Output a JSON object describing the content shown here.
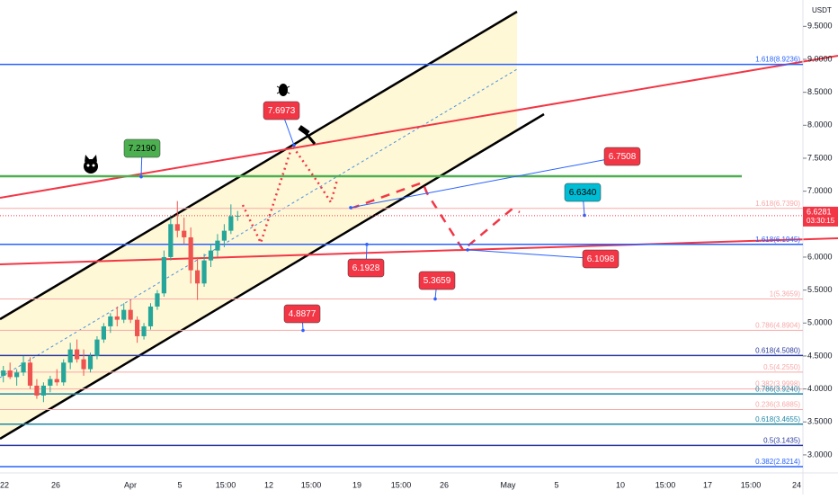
{
  "chart_data": {
    "type": "candlestick",
    "currency": "USDT",
    "ylim": [
      2.74,
      9.9
    ],
    "yticks": [
      {
        "value": 9.5,
        "label": "9.5000"
      },
      {
        "value": 9,
        "label": "9.0000"
      },
      {
        "value": 8.5,
        "label": "8.5000"
      },
      {
        "value": 8,
        "label": "8.0000"
      },
      {
        "value": 7.5,
        "label": "7.5000"
      },
      {
        "value": 7,
        "label": "7.0000"
      },
      {
        "value": 6.5,
        "label": "6.5000"
      },
      {
        "value": 6,
        "label": "6.0000"
      },
      {
        "value": 5.5,
        "label": "5.5000"
      },
      {
        "value": 5,
        "label": "5.0000"
      },
      {
        "value": 4.5,
        "label": "4.5000"
      },
      {
        "value": 4,
        "label": "4.0000"
      },
      {
        "value": 3.5,
        "label": "3.5000"
      },
      {
        "value": 3,
        "label": "3.0000"
      }
    ],
    "time_labels": [
      "22",
      "26",
      "Apr",
      "5",
      "15:00",
      "12",
      "15:00",
      "19",
      "15:00",
      "26",
      "May",
      "5",
      "10",
      "15:00",
      "17",
      "15:00",
      "24"
    ],
    "up_color": "#26a69a",
    "down_color": "#ef5350",
    "candles": [
      [
        4.2,
        4.35,
        4.1,
        4.28
      ],
      [
        4.28,
        4.4,
        4.15,
        4.18
      ],
      [
        4.18,
        4.3,
        4.05,
        4.25
      ],
      [
        4.25,
        4.5,
        4.2,
        4.4
      ],
      [
        4.4,
        4.48,
        4.0,
        4.05
      ],
      [
        4.05,
        4.15,
        3.85,
        3.9
      ],
      [
        3.9,
        4.1,
        3.8,
        4.05
      ],
      [
        4.05,
        4.2,
        3.95,
        4.15
      ],
      [
        4.15,
        4.3,
        4.05,
        4.1
      ],
      [
        4.1,
        4.45,
        4.05,
        4.4
      ],
      [
        4.4,
        4.7,
        4.3,
        4.6
      ],
      [
        4.6,
        4.75,
        4.4,
        4.45
      ],
      [
        4.45,
        4.6,
        4.2,
        4.3
      ],
      [
        4.3,
        4.55,
        4.25,
        4.5
      ],
      [
        4.5,
        4.8,
        4.45,
        4.75
      ],
      [
        4.75,
        5.0,
        4.7,
        4.95
      ],
      [
        4.95,
        5.15,
        4.85,
        5.1
      ],
      [
        5.1,
        5.25,
        4.95,
        5.05
      ],
      [
        5.05,
        5.3,
        5.0,
        5.2
      ],
      [
        5.2,
        5.35,
        5.0,
        5.05
      ],
      [
        5.05,
        5.1,
        4.7,
        4.8
      ],
      [
        4.8,
        5.0,
        4.75,
        4.95
      ],
      [
        4.95,
        5.3,
        4.9,
        5.25
      ],
      [
        5.25,
        5.5,
        5.2,
        5.45
      ],
      [
        5.45,
        6.1,
        5.4,
        6.0
      ],
      [
        6.0,
        6.6,
        5.95,
        6.5
      ],
      [
        6.5,
        6.85,
        6.3,
        6.4
      ],
      [
        6.4,
        6.6,
        6.2,
        6.3
      ],
      [
        6.3,
        6.45,
        5.6,
        5.8
      ],
      [
        5.8,
        6.0,
        5.35,
        5.6
      ],
      [
        5.6,
        6.05,
        5.55,
        5.95
      ],
      [
        5.95,
        6.2,
        5.85,
        6.1
      ],
      [
        6.1,
        6.35,
        6.0,
        6.25
      ],
      [
        6.25,
        6.5,
        6.15,
        6.4
      ],
      [
        6.4,
        6.8,
        6.35,
        6.62
      ],
      [
        6.62,
        6.7,
        6.55,
        6.628
      ]
    ],
    "fib_levels": [
      {
        "label": "1.618(8.9236)",
        "value": 8.9236,
        "color": "#2962ff"
      },
      {
        "label": "1.618(6.7390)",
        "value": 6.739,
        "color": "#f7a9a8"
      },
      {
        "label": "1.618(6.1945)",
        "value": 6.1945,
        "color": "#2962ff"
      },
      {
        "label": "1(5.3659)",
        "value": 5.3659,
        "color": "#f7a9a8"
      },
      {
        "label": "0.786(4.8904)",
        "value": 4.8904,
        "color": "#f7a9a8"
      },
      {
        "label": "0.618(4.5080)",
        "value": 4.508,
        "color": "#2a3a9f"
      },
      {
        "label": "0.5(4.2550)",
        "value": 4.255,
        "color": "#f7a9a8"
      },
      {
        "label": "0.382(3.9998)",
        "value": 3.9998,
        "color": "#f7a9a8"
      },
      {
        "label": "0.786(3.9240)",
        "value": 3.924,
        "color": "#1e88a8"
      },
      {
        "label": "0.236(3.6885)",
        "value": 3.6885,
        "color": "#f7a9a8"
      },
      {
        "label": "0.618(3.4655)",
        "value": 3.4655,
        "color": "#1e88a8"
      },
      {
        "label": "0.5(3.1435)",
        "value": 3.1435,
        "color": "#2a3a9f"
      },
      {
        "label": "0.382(2.8214)",
        "value": 2.8214,
        "color": "#2962ff"
      }
    ],
    "annotations": [
      {
        "label": "7.2190",
        "value": 7.219,
        "color": "#4caf50"
      },
      {
        "label": "7.6973",
        "value": 7.6973,
        "color": "#f23645"
      },
      {
        "label": "6.7508",
        "value": 6.7508,
        "color": "#f23645"
      },
      {
        "label": "6.6340",
        "value": 6.634,
        "color": "#00bcd4"
      },
      {
        "label": "6.1928",
        "value": 6.1928,
        "color": "#f23645"
      },
      {
        "label": "6.1098",
        "value": 6.1098,
        "color": "#f23645"
      },
      {
        "label": "5.3659",
        "value": 5.3659,
        "color": "#f23645"
      },
      {
        "label": "4.8877",
        "value": 4.8877,
        "color": "#f23645"
      }
    ],
    "current_price": {
      "label": "6.6281",
      "value": 6.6281,
      "countdown": "03:30:15",
      "color": "#f23645"
    }
  }
}
